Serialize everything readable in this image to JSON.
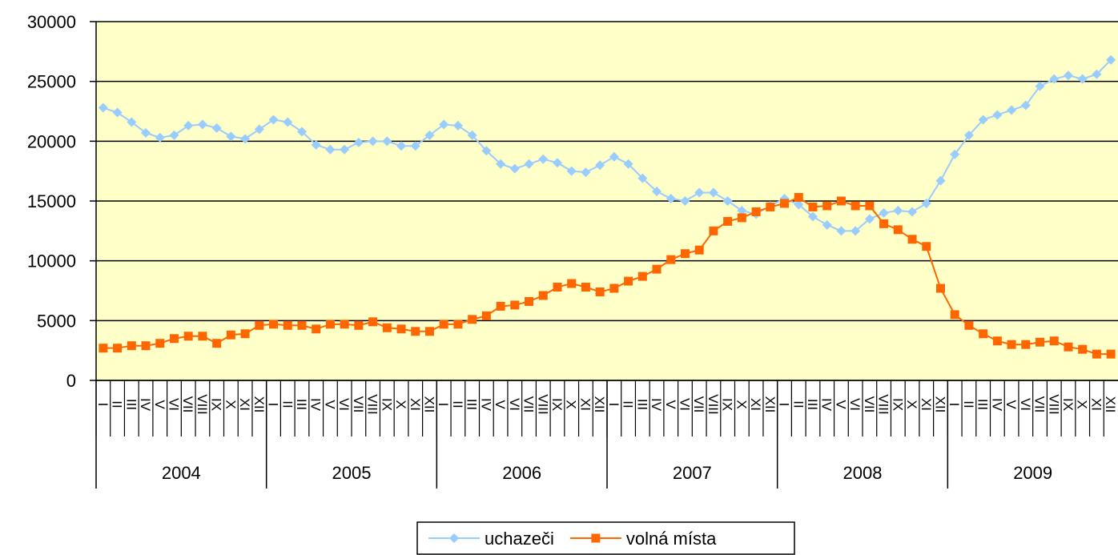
{
  "chart_data": {
    "type": "line",
    "categories": [
      "I",
      "II",
      "III",
      "IV",
      "V",
      "VI",
      "VII",
      "VIII",
      "IX",
      "X",
      "XI",
      "XII",
      "I",
      "II",
      "III",
      "IV",
      "V",
      "VI",
      "VII",
      "VIII",
      "IX",
      "X",
      "XI",
      "XII",
      "I",
      "II",
      "III",
      "IV",
      "V",
      "VI",
      "VII",
      "VIII",
      "IX",
      "X",
      "XI",
      "XII",
      "I",
      "II",
      "III",
      "IV",
      "V",
      "VI",
      "VII",
      "VIII",
      "IX",
      "X",
      "XI",
      "XII",
      "I",
      "II",
      "III",
      "IV",
      "V",
      "VI",
      "VII",
      "VIII",
      "IX",
      "X",
      "XI",
      "XII",
      "I",
      "II",
      "III",
      "IV",
      "V",
      "VI",
      "VII",
      "VIII",
      "IX",
      "X",
      "XI",
      "XII"
    ],
    "groups": [
      "2004",
      "2005",
      "2006",
      "2007",
      "2008",
      "2009"
    ],
    "series": [
      {
        "name": "uchazeči",
        "color": "#99ccff",
        "marker": "diamond",
        "values": [
          22800,
          22400,
          21600,
          20700,
          20300,
          20500,
          21300,
          21400,
          21100,
          20400,
          20200,
          21000,
          21800,
          21600,
          20800,
          19700,
          19300,
          19300,
          19900,
          20000,
          20000,
          19600,
          19600,
          20500,
          21400,
          21300,
          20500,
          19200,
          18100,
          17700,
          18100,
          18500,
          18200,
          17500,
          17400,
          18000,
          18700,
          18100,
          16900,
          15800,
          15200,
          15000,
          15700,
          15700,
          15000,
          14200,
          13900,
          14600,
          15200,
          14700,
          13700,
          13000,
          12500,
          12500,
          13500,
          14000,
          14200,
          14100,
          14800,
          16700,
          18900,
          20500,
          21800,
          22200,
          22600,
          23000,
          24600,
          25200,
          25500,
          25200,
          25600,
          26800
        ]
      },
      {
        "name": "volná místa",
        "color": "#ff6600",
        "marker": "square",
        "values": [
          2700,
          2700,
          2900,
          2900,
          3100,
          3500,
          3700,
          3700,
          3100,
          3800,
          3900,
          4600,
          4700,
          4600,
          4600,
          4300,
          4700,
          4700,
          4600,
          4900,
          4400,
          4300,
          4100,
          4100,
          4700,
          4700,
          5100,
          5400,
          6200,
          6300,
          6600,
          7100,
          7800,
          8100,
          7800,
          7400,
          7700,
          8300,
          8700,
          9300,
          10100,
          10600,
          10900,
          12500,
          13300,
          13600,
          14100,
          14500,
          14800,
          15300,
          14500,
          14600,
          15000,
          14600,
          14600,
          13100,
          12600,
          11800,
          11200,
          7700,
          5500,
          4600,
          3900,
          3300,
          3000,
          3000,
          3200,
          3300,
          2800,
          2600,
          2200,
          2200
        ]
      }
    ],
    "ylim": [
      0,
      30000
    ],
    "yticks": [
      0,
      5000,
      10000,
      15000,
      20000,
      25000,
      30000
    ],
    "grid": true,
    "plot_background": "#ffffc8",
    "legend": "bottom"
  }
}
